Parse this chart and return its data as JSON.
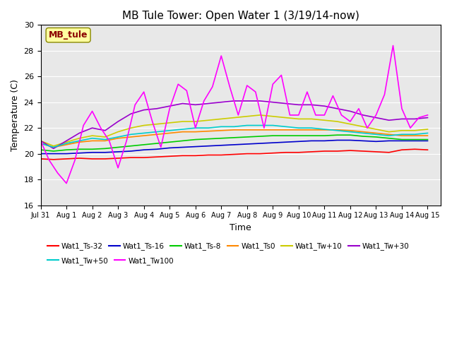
{
  "title": "MB Tule Tower: Open Water 1 (3/19/14-now)",
  "xlabel": "Time",
  "ylabel": "Temperature (C)",
  "ylim": [
    16,
    30
  ],
  "yticks": [
    16,
    18,
    20,
    22,
    24,
    26,
    28,
    30
  ],
  "xlim": [
    0,
    15.5
  ],
  "xtick_labels": [
    "Jul 31",
    "Aug 1",
    "Aug 2",
    "Aug 3",
    "Aug 4",
    "Aug 5",
    "Aug 6",
    "Aug 7",
    "Aug 8",
    "Aug 9",
    "Aug 10",
    "Aug 11",
    "Aug 12",
    "Aug 13",
    "Aug 14",
    "Aug 15"
  ],
  "xtick_positions": [
    0,
    1,
    2,
    3,
    4,
    5,
    6,
    7,
    8,
    9,
    10,
    11,
    12,
    13,
    14,
    15
  ],
  "annotation_text": "MB_tule",
  "annotation_color": "#8B0000",
  "annotation_bg": "#FFFFA0",
  "series": {
    "Wat1_Ts-32": {
      "color": "#FF0000",
      "x": [
        0,
        0.5,
        1,
        1.5,
        2,
        2.5,
        3,
        3.5,
        4,
        4.5,
        5,
        5.5,
        6,
        6.5,
        7,
        7.5,
        8,
        8.5,
        9,
        9.5,
        10,
        10.5,
        11,
        11.5,
        12,
        12.5,
        13,
        13.5,
        14,
        14.5,
        15
      ],
      "y": [
        19.6,
        19.55,
        19.6,
        19.65,
        19.6,
        19.6,
        19.65,
        19.7,
        19.7,
        19.75,
        19.8,
        19.85,
        19.85,
        19.9,
        19.9,
        19.95,
        20.0,
        20.0,
        20.05,
        20.1,
        20.1,
        20.15,
        20.2,
        20.2,
        20.25,
        20.2,
        20.15,
        20.1,
        20.3,
        20.35,
        20.3
      ]
    },
    "Wat1_Ts-16": {
      "color": "#0000CC",
      "x": [
        0,
        0.5,
        1,
        1.5,
        2,
        2.5,
        3,
        3.5,
        4,
        4.5,
        5,
        5.5,
        6,
        6.5,
        7,
        7.5,
        8,
        8.5,
        9,
        9.5,
        10,
        10.5,
        11,
        11.5,
        12,
        12.5,
        13,
        13.5,
        14,
        14.5,
        15
      ],
      "y": [
        20.0,
        20.0,
        20.0,
        20.05,
        20.1,
        20.1,
        20.15,
        20.2,
        20.3,
        20.35,
        20.45,
        20.5,
        20.55,
        20.6,
        20.65,
        20.7,
        20.75,
        20.8,
        20.85,
        20.9,
        20.95,
        21.0,
        21.0,
        21.05,
        21.05,
        21.0,
        20.95,
        21.0,
        21.0,
        21.0,
        21.0
      ]
    },
    "Wat1_Ts-8": {
      "color": "#00CC00",
      "x": [
        0,
        0.5,
        1,
        1.5,
        2,
        2.5,
        3,
        3.5,
        4,
        4.5,
        5,
        5.5,
        6,
        6.5,
        7,
        7.5,
        8,
        8.5,
        9,
        9.5,
        10,
        10.5,
        11,
        11.5,
        12,
        12.5,
        13,
        13.5,
        14,
        14.5,
        15
      ],
      "y": [
        20.3,
        20.2,
        20.3,
        20.35,
        20.35,
        20.4,
        20.5,
        20.6,
        20.7,
        20.8,
        20.9,
        21.0,
        21.1,
        21.15,
        21.2,
        21.25,
        21.3,
        21.35,
        21.4,
        21.4,
        21.4,
        21.4,
        21.4,
        21.45,
        21.45,
        21.35,
        21.3,
        21.2,
        21.1,
        21.1,
        21.1
      ]
    },
    "Wat1_Ts0": {
      "color": "#FF8800",
      "x": [
        0,
        0.5,
        1,
        1.5,
        2,
        2.5,
        3,
        3.5,
        4,
        4.5,
        5,
        5.5,
        6,
        6.5,
        7,
        7.5,
        8,
        8.5,
        9,
        9.5,
        10,
        10.5,
        11,
        11.5,
        12,
        12.5,
        13,
        13.5,
        14,
        14.5,
        15
      ],
      "y": [
        20.8,
        20.5,
        20.7,
        20.9,
        21.0,
        21.0,
        21.2,
        21.3,
        21.4,
        21.5,
        21.6,
        21.7,
        21.7,
        21.75,
        21.8,
        21.85,
        21.85,
        21.85,
        21.85,
        21.85,
        21.85,
        21.85,
        21.85,
        21.85,
        21.8,
        21.7,
        21.6,
        21.5,
        21.4,
        21.4,
        21.4
      ]
    },
    "Wat1_Tw+10": {
      "color": "#CCCC00",
      "x": [
        0,
        0.5,
        1,
        1.5,
        2,
        2.5,
        3,
        3.5,
        4,
        4.5,
        5,
        5.5,
        6,
        6.5,
        7,
        7.5,
        8,
        8.5,
        9,
        9.5,
        10,
        10.5,
        11,
        11.5,
        12,
        12.5,
        13,
        13.5,
        14,
        14.5,
        15
      ],
      "y": [
        21.0,
        20.6,
        20.9,
        21.2,
        21.4,
        21.3,
        21.7,
        22.0,
        22.2,
        22.3,
        22.4,
        22.5,
        22.5,
        22.6,
        22.7,
        22.8,
        22.9,
        23.0,
        22.9,
        22.8,
        22.7,
        22.7,
        22.6,
        22.5,
        22.3,
        22.1,
        21.9,
        21.7,
        21.8,
        21.8,
        21.9
      ]
    },
    "Wat1_Tw+30": {
      "color": "#9900CC",
      "x": [
        0,
        0.5,
        1,
        1.5,
        2,
        2.5,
        3,
        3.5,
        4,
        4.5,
        5,
        5.5,
        6,
        6.5,
        7,
        7.5,
        8,
        8.5,
        9,
        9.5,
        10,
        10.5,
        11,
        11.5,
        12,
        12.5,
        13,
        13.5,
        14,
        14.5,
        15
      ],
      "y": [
        21.0,
        20.4,
        21.0,
        21.6,
        22.0,
        21.8,
        22.5,
        23.1,
        23.4,
        23.5,
        23.7,
        23.9,
        23.8,
        23.9,
        24.0,
        24.1,
        24.1,
        24.1,
        24.0,
        23.9,
        23.8,
        23.8,
        23.7,
        23.5,
        23.3,
        23.0,
        22.8,
        22.6,
        22.7,
        22.7,
        22.8
      ]
    },
    "Wat1_Tw+50": {
      "color": "#00CCCC",
      "x": [
        0,
        0.5,
        1,
        1.5,
        2,
        2.5,
        3,
        3.5,
        4,
        4.5,
        5,
        5.5,
        6,
        6.5,
        7,
        7.5,
        8,
        8.5,
        9,
        9.5,
        10,
        10.5,
        11,
        11.5,
        12,
        12.5,
        13,
        13.5,
        14,
        14.5,
        15
      ],
      "y": [
        20.8,
        20.5,
        20.8,
        21.0,
        21.2,
        21.1,
        21.3,
        21.5,
        21.6,
        21.7,
        21.8,
        21.9,
        22.0,
        22.0,
        22.1,
        22.1,
        22.2,
        22.2,
        22.2,
        22.1,
        22.0,
        22.0,
        21.9,
        21.8,
        21.7,
        21.6,
        21.5,
        21.4,
        21.5,
        21.5,
        21.6
      ]
    },
    "Wat1_Tw100": {
      "color": "#FF00FF",
      "x": [
        0,
        0.33,
        0.66,
        1.0,
        1.33,
        1.66,
        2.0,
        2.33,
        2.66,
        3.0,
        3.33,
        3.66,
        4.0,
        4.33,
        4.66,
        5.0,
        5.33,
        5.66,
        6.0,
        6.33,
        6.66,
        7.0,
        7.33,
        7.66,
        8.0,
        8.33,
        8.66,
        9.0,
        9.33,
        9.66,
        10.0,
        10.33,
        10.66,
        11.0,
        11.33,
        11.66,
        12.0,
        12.33,
        12.66,
        13.0,
        13.33,
        13.66,
        14.0,
        14.33,
        14.66,
        15.0
      ],
      "y": [
        21.0,
        19.5,
        18.5,
        17.7,
        19.5,
        22.2,
        23.3,
        22.0,
        21.0,
        18.9,
        21.0,
        23.8,
        24.8,
        22.5,
        20.5,
        23.5,
        25.4,
        24.9,
        22.0,
        24.1,
        25.2,
        27.6,
        25.2,
        23.0,
        25.3,
        24.8,
        22.0,
        25.4,
        26.1,
        23.0,
        23.0,
        24.8,
        23.0,
        23.0,
        24.5,
        23.0,
        22.5,
        23.5,
        22.0,
        23.0,
        24.6,
        28.4,
        23.5,
        22.0,
        22.8,
        23.0
      ]
    }
  }
}
